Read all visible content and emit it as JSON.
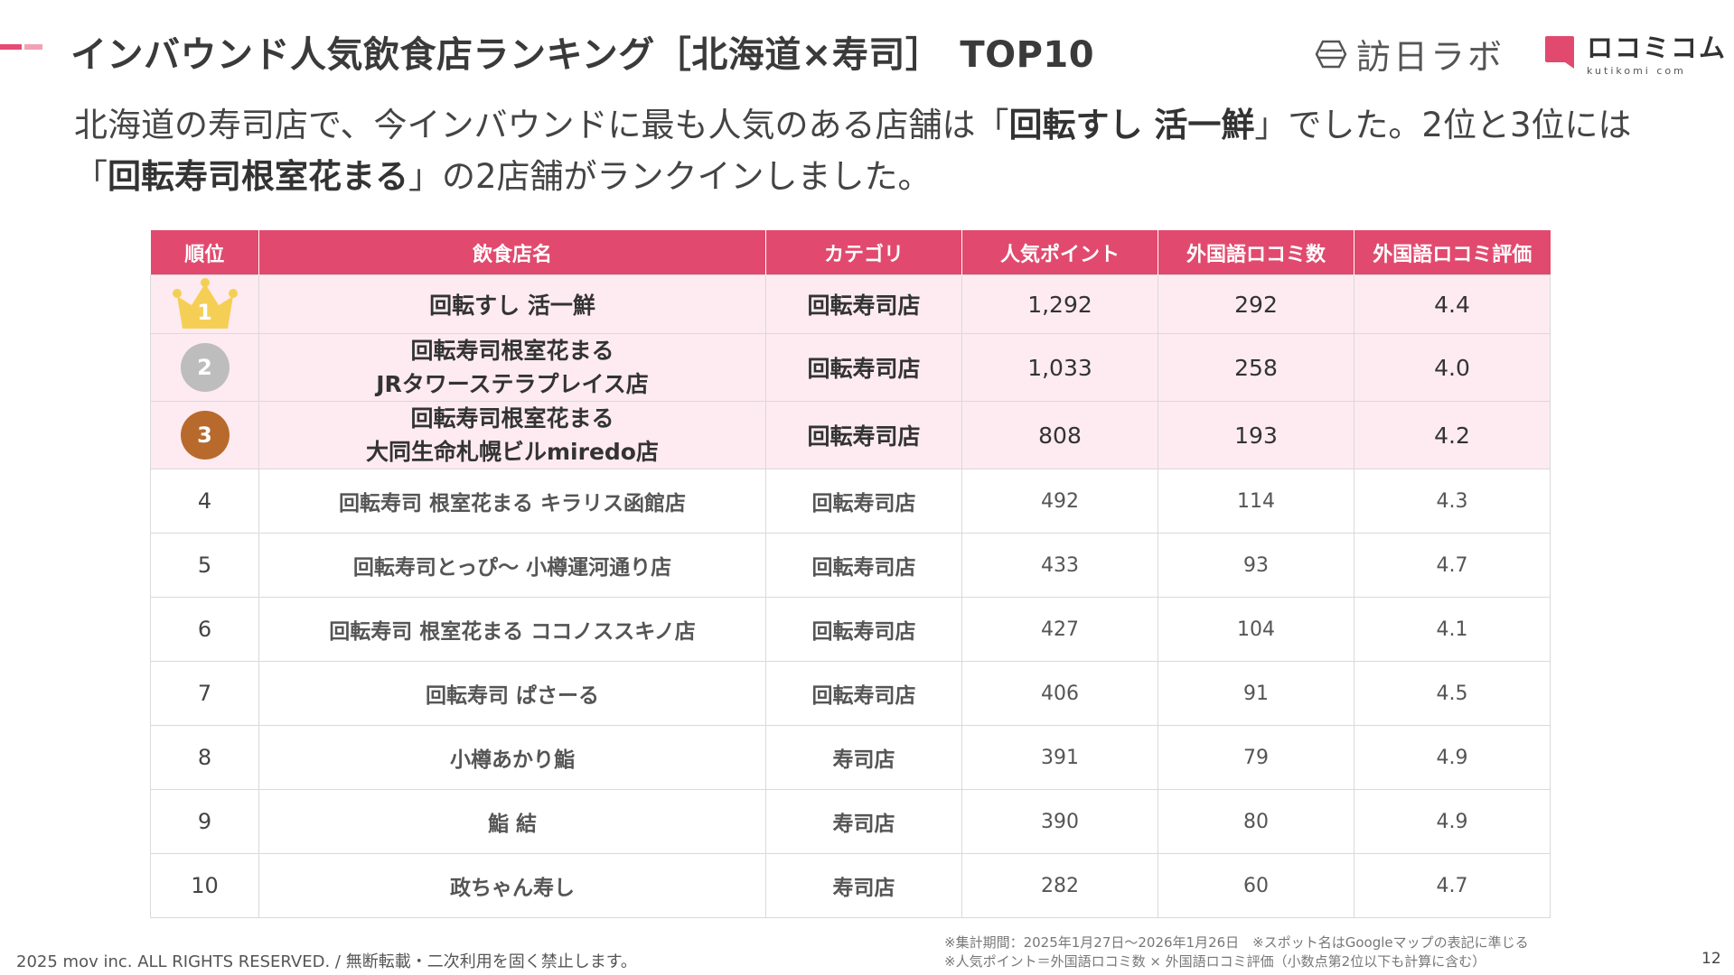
{
  "header": {
    "title": "インバウンド人気飲食店ランキング［北海道×寿司］",
    "title_suffix": "TOP10",
    "logo_houbichi": "訪日ラボ",
    "logo_kuchikomi": "ロコミコム",
    "logo_kuchikomi_sub": "kutikomi com"
  },
  "lead": {
    "p1": "北海道の寿司店で、今インバウンドに最も人気のある店舗は「",
    "b1": "回転すし 活一鮮",
    "p2": "」でした。2位と3位には「",
    "b2": "回転寿司根室花まる",
    "p3": "」の2店舗がランクインしました。"
  },
  "table": {
    "headers": [
      "順位",
      "飲食店名",
      "カテゴリ",
      "人気ポイント",
      "外国語ロコミ数",
      "外国語ロコミ評価"
    ],
    "rows": [
      {
        "rank": "1",
        "name": "回転すし 活一鮮",
        "category": "回転寿司店",
        "points": "1,292",
        "reviews": "292",
        "rating": "4.4"
      },
      {
        "rank": "2",
        "name_line1": "回転寿司根室花まる",
        "name_line2": "JRタワーステラプレイス店",
        "category": "回転寿司店",
        "points": "1,033",
        "reviews": "258",
        "rating": "4.0"
      },
      {
        "rank": "3",
        "name_line1": "回転寿司根室花まる",
        "name_line2": "大同生命札幌ビルmiredo店",
        "category": "回転寿司店",
        "points": "808",
        "reviews": "193",
        "rating": "4.2"
      },
      {
        "rank": "4",
        "name": "回転寿司 根室花まる キラリス函館店",
        "category": "回転寿司店",
        "points": "492",
        "reviews": "114",
        "rating": "4.3"
      },
      {
        "rank": "5",
        "name": "回転寿司とっぴ〜 小樽運河通り店",
        "category": "回転寿司店",
        "points": "433",
        "reviews": "93",
        "rating": "4.7"
      },
      {
        "rank": "6",
        "name": "回転寿司 根室花まる ココノススキノ店",
        "category": "回転寿司店",
        "points": "427",
        "reviews": "104",
        "rating": "4.1"
      },
      {
        "rank": "7",
        "name": "回転寿司 ぱさーる",
        "category": "回転寿司店",
        "points": "406",
        "reviews": "91",
        "rating": "4.5"
      },
      {
        "rank": "8",
        "name": "小樽あかり鮨",
        "category": "寿司店",
        "points": "391",
        "reviews": "79",
        "rating": "4.9"
      },
      {
        "rank": "9",
        "name": "鮨 結",
        "category": "寿司店",
        "points": "390",
        "reviews": "80",
        "rating": "4.9"
      },
      {
        "rank": "10",
        "name": "政ちゃん寿し",
        "category": "寿司店",
        "points": "282",
        "reviews": "60",
        "rating": "4.7"
      }
    ]
  },
  "footer": {
    "copyright": "2025 mov inc. ALL RIGHTS RESERVED. / 無断転載・二次利用を固く禁止します。",
    "note1": "※集計期間：2025年1月27日〜2026年1月26日　※スポット名はGoogleマップの表記に準じる",
    "note2": "※人気ポイント＝外国語ロコミ数 × 外国語ロコミ評価（小数点第2位以下も計算に含む）",
    "page_number": "12"
  },
  "colors": {
    "accent": "#e14a6e",
    "accent_light": "#f2a1b4",
    "top3_row_bg": "#fdebf1",
    "gold": "#f5cf55",
    "silver": "#bdbdbd",
    "bronze": "#b86a2c"
  },
  "icons": {
    "rank1": "gold-crown-icon",
    "rank2": "silver-medal-icon",
    "rank3": "bronze-medal-icon",
    "logo1": "houbichi-lab-logo",
    "logo2": "kuchikomi-logo"
  }
}
